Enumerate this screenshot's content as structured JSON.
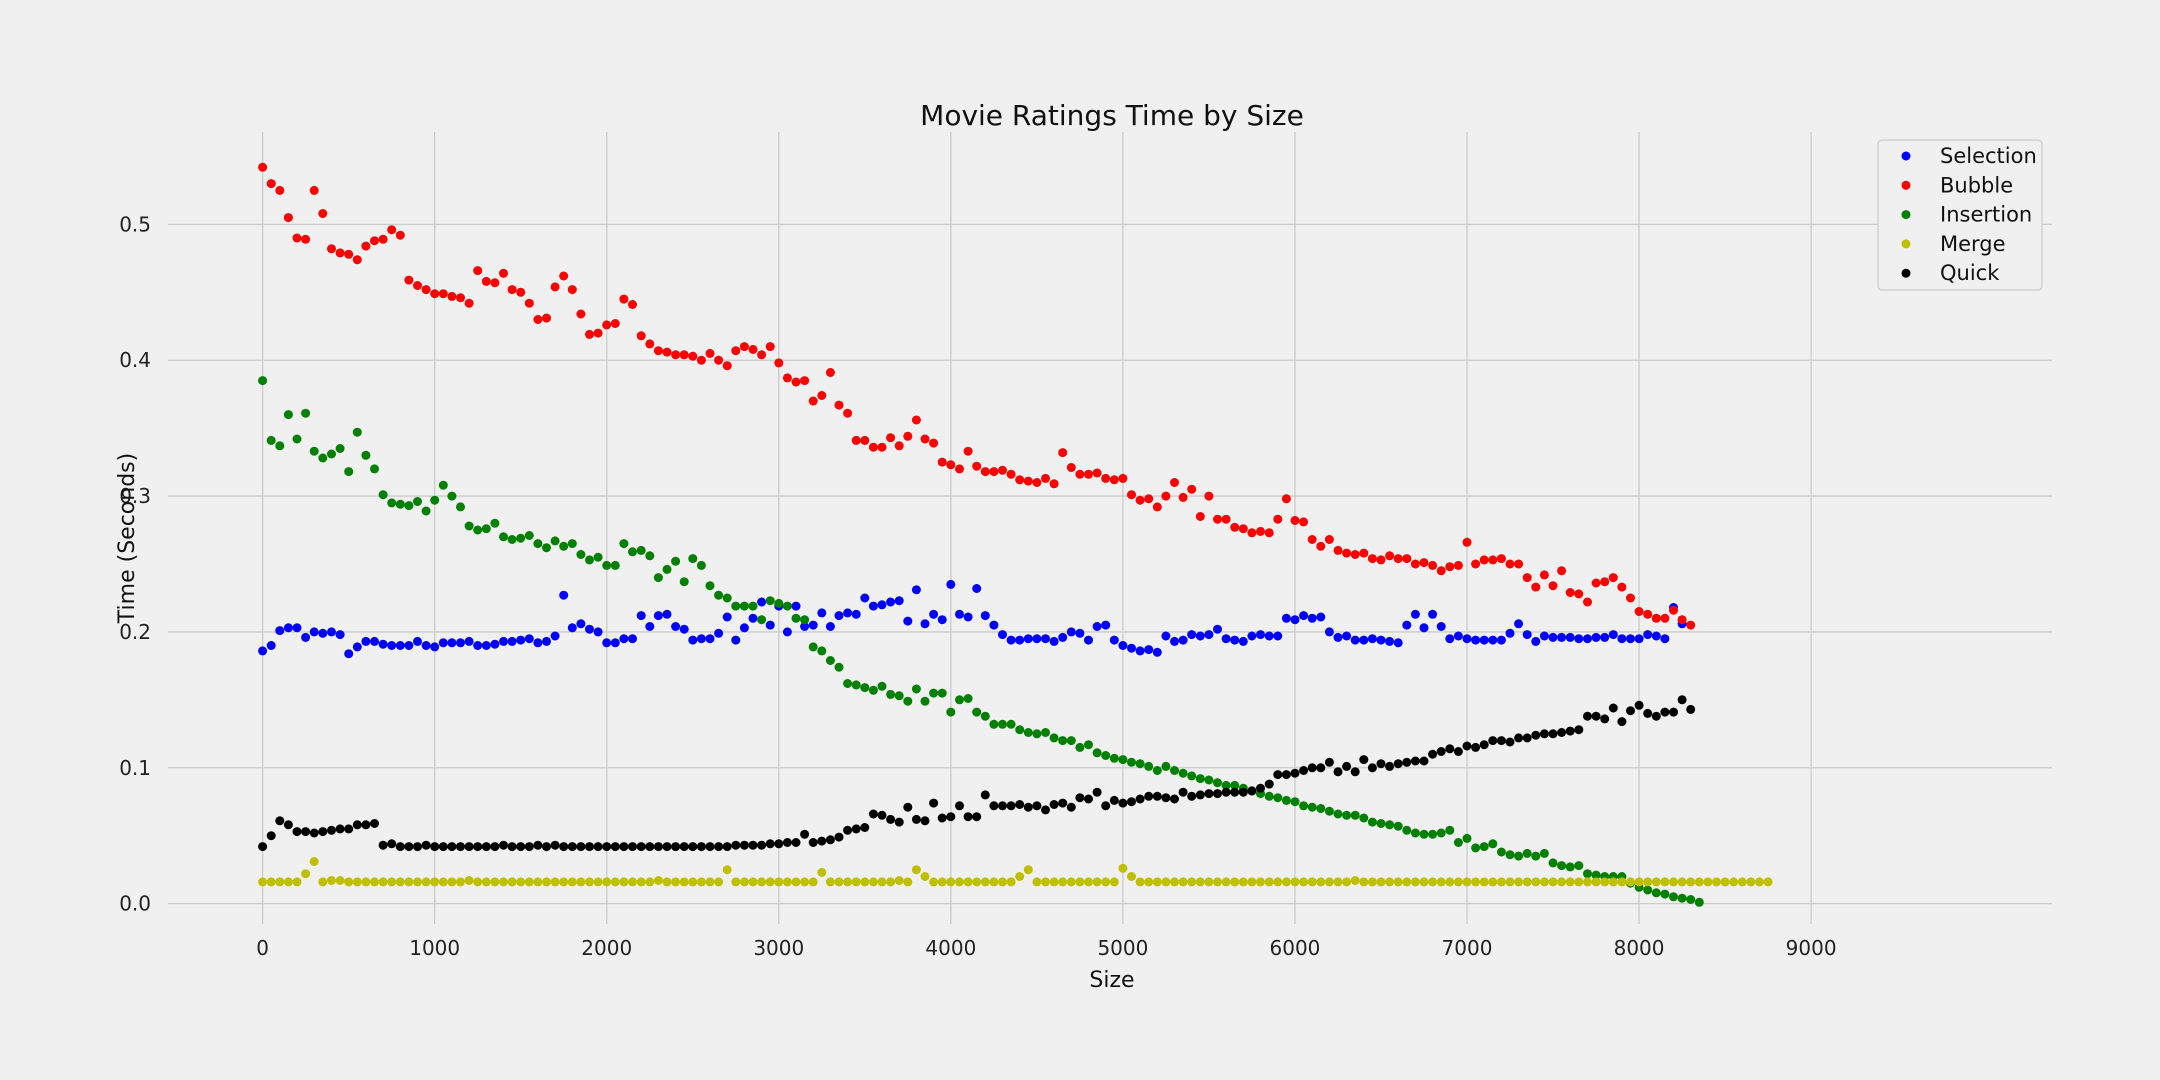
{
  "chart_data": {
    "type": "scatter",
    "title": "Movie Ratings Time by Size",
    "xlabel": "Size",
    "ylabel": "Time (Seconds)",
    "xlim": [
      -550,
      10400
    ],
    "ylim": [
      -0.015,
      0.568
    ],
    "xticks": [
      0,
      1000,
      2000,
      3000,
      4000,
      5000,
      6000,
      7000,
      8000,
      9000
    ],
    "xtick_labels": [
      "0",
      "1000",
      "2000",
      "3000",
      "4000",
      "5000",
      "6000",
      "7000",
      "8000",
      "9000"
    ],
    "yticks": [
      0.0,
      0.1,
      0.2,
      0.3,
      0.4,
      0.5
    ],
    "ytick_labels": [
      "0.0",
      "0.1",
      "0.2",
      "0.3",
      "0.4",
      "0.5"
    ],
    "grid": true,
    "legend": "top-right",
    "x_start": 0,
    "x_step": 50,
    "series": [
      {
        "name": "Selection",
        "color": "#0000ff",
        "values": [
          0.186,
          0.19,
          0.201,
          0.203,
          0.203,
          0.196,
          0.2,
          0.199,
          0.2,
          0.198,
          0.184,
          0.189,
          0.193,
          0.193,
          0.191,
          0.19,
          0.19,
          0.19,
          0.193,
          0.19,
          0.189,
          0.192,
          0.192,
          0.192,
          0.193,
          0.19,
          0.19,
          0.191,
          0.193,
          0.193,
          0.194,
          0.195,
          0.192,
          0.193,
          0.197,
          0.227,
          0.203,
          0.206,
          0.202,
          0.2,
          0.192,
          0.192,
          0.195,
          0.195,
          0.212,
          0.204,
          0.212,
          0.213,
          0.204,
          0.202,
          0.194,
          0.195,
          0.195,
          0.199,
          0.211,
          0.194,
          0.203,
          0.21,
          0.222,
          0.205,
          0.219,
          0.2,
          0.219,
          0.204,
          0.205,
          0.214,
          0.204,
          0.212,
          0.214,
          0.213,
          0.225,
          0.219,
          0.22,
          0.222,
          0.223,
          0.208,
          0.231,
          0.206,
          0.213,
          0.209,
          0.235,
          0.213,
          0.211,
          0.232,
          0.212,
          0.205,
          0.198,
          0.194,
          0.194,
          0.195,
          0.195,
          0.195,
          0.193,
          0.196,
          0.2,
          0.199,
          0.194,
          0.204,
          0.205,
          0.194,
          0.19,
          0.188,
          0.186,
          0.187,
          0.185,
          0.197,
          0.193,
          0.194,
          0.198,
          0.197,
          0.198,
          0.202,
          0.195,
          0.194,
          0.193,
          0.197,
          0.198,
          0.197,
          0.197,
          0.21,
          0.209,
          0.212,
          0.21,
          0.211,
          0.2,
          0.196,
          0.197,
          0.194,
          0.194,
          0.195,
          0.194,
          0.193,
          0.192,
          0.205,
          0.213,
          0.203,
          0.213,
          0.204,
          0.195,
          0.197,
          0.195,
          0.194,
          0.194,
          0.194,
          0.194,
          0.199,
          0.206,
          0.198,
          0.193,
          0.197,
          0.196,
          0.196,
          0.196,
          0.195,
          0.195,
          0.196,
          0.196,
          0.198,
          0.195,
          0.195,
          0.195,
          0.198,
          0.197,
          0.195,
          0.218,
          0.206
        ]
      },
      {
        "name": "Bubble",
        "color": "#ff0000",
        "values": [
          0.542,
          0.53,
          0.525,
          0.505,
          0.49,
          0.489,
          0.525,
          0.508,
          0.482,
          0.479,
          0.478,
          0.474,
          0.484,
          0.488,
          0.489,
          0.496,
          0.492,
          0.459,
          0.455,
          0.452,
          0.449,
          0.449,
          0.447,
          0.446,
          0.442,
          0.466,
          0.458,
          0.457,
          0.464,
          0.452,
          0.45,
          0.442,
          0.43,
          0.431,
          0.454,
          0.462,
          0.452,
          0.434,
          0.419,
          0.42,
          0.426,
          0.427,
          0.445,
          0.441,
          0.418,
          0.412,
          0.407,
          0.406,
          0.404,
          0.404,
          0.403,
          0.4,
          0.405,
          0.4,
          0.396,
          0.407,
          0.41,
          0.408,
          0.404,
          0.41,
          0.398,
          0.387,
          0.384,
          0.385,
          0.37,
          0.374,
          0.391,
          0.367,
          0.361,
          0.341,
          0.341,
          0.336,
          0.336,
          0.343,
          0.337,
          0.344,
          0.356,
          0.342,
          0.339,
          0.325,
          0.323,
          0.32,
          0.333,
          0.322,
          0.318,
          0.318,
          0.319,
          0.316,
          0.312,
          0.311,
          0.31,
          0.313,
          0.309,
          0.332,
          0.321,
          0.316,
          0.316,
          0.317,
          0.313,
          0.312,
          0.313,
          0.301,
          0.297,
          0.298,
          0.292,
          0.3,
          0.31,
          0.299,
          0.305,
          0.285,
          0.3,
          0.283,
          0.283,
          0.277,
          0.276,
          0.273,
          0.274,
          0.273,
          0.283,
          0.298,
          0.282,
          0.281,
          0.268,
          0.263,
          0.268,
          0.26,
          0.258,
          0.257,
          0.258,
          0.254,
          0.253,
          0.256,
          0.254,
          0.254,
          0.25,
          0.251,
          0.249,
          0.245,
          0.248,
          0.249,
          0.266,
          0.25,
          0.253,
          0.253,
          0.254,
          0.25,
          0.25,
          0.24,
          0.233,
          0.242,
          0.234,
          0.245,
          0.229,
          0.228,
          0.222,
          0.236,
          0.237,
          0.24,
          0.233,
          0.225,
          0.215,
          0.213,
          0.21,
          0.21,
          0.216,
          0.209,
          0.205
        ]
      },
      {
        "name": "Insertion",
        "color": "#008000",
        "values": [
          0.385,
          0.341,
          0.337,
          0.36,
          0.342,
          0.361,
          0.333,
          0.328,
          0.331,
          0.335,
          0.318,
          0.347,
          0.33,
          0.32,
          0.301,
          0.295,
          0.294,
          0.293,
          0.296,
          0.289,
          0.297,
          0.308,
          0.3,
          0.292,
          0.278,
          0.275,
          0.276,
          0.28,
          0.27,
          0.268,
          0.269,
          0.271,
          0.265,
          0.262,
          0.267,
          0.263,
          0.265,
          0.257,
          0.253,
          0.255,
          0.249,
          0.249,
          0.265,
          0.259,
          0.26,
          0.256,
          0.24,
          0.246,
          0.252,
          0.237,
          0.254,
          0.249,
          0.234,
          0.227,
          0.225,
          0.219,
          0.219,
          0.219,
          0.209,
          0.223,
          0.221,
          0.219,
          0.21,
          0.209,
          0.189,
          0.186,
          0.179,
          0.174,
          0.162,
          0.161,
          0.159,
          0.157,
          0.16,
          0.154,
          0.153,
          0.149,
          0.158,
          0.149,
          0.155,
          0.155,
          0.141,
          0.15,
          0.151,
          0.141,
          0.138,
          0.132,
          0.132,
          0.132,
          0.128,
          0.126,
          0.125,
          0.126,
          0.122,
          0.12,
          0.12,
          0.115,
          0.117,
          0.111,
          0.109,
          0.107,
          0.106,
          0.104,
          0.103,
          0.101,
          0.098,
          0.101,
          0.098,
          0.096,
          0.094,
          0.092,
          0.091,
          0.089,
          0.087,
          0.087,
          0.085,
          0.083,
          0.081,
          0.079,
          0.078,
          0.076,
          0.075,
          0.072,
          0.071,
          0.07,
          0.068,
          0.066,
          0.065,
          0.065,
          0.063,
          0.06,
          0.059,
          0.058,
          0.057,
          0.054,
          0.052,
          0.051,
          0.051,
          0.052,
          0.054,
          0.045,
          0.048,
          0.041,
          0.042,
          0.044,
          0.038,
          0.036,
          0.035,
          0.037,
          0.035,
          0.037,
          0.03,
          0.028,
          0.027,
          0.028,
          0.022,
          0.021,
          0.02,
          0.02,
          0.02,
          0.015,
          0.012,
          0.01,
          0.008,
          0.007,
          0.005,
          0.004,
          0.003,
          0.001
        ]
      },
      {
        "name": "Merge",
        "color": "#bfbf00",
        "values": [
          0.016,
          0.016,
          0.016,
          0.016,
          0.016,
          0.022,
          0.031,
          0.016,
          0.017,
          0.017,
          0.016,
          0.016,
          0.016,
          0.016,
          0.016,
          0.016,
          0.016,
          0.016,
          0.016,
          0.016,
          0.016,
          0.016,
          0.016,
          0.016,
          0.017,
          0.016,
          0.016,
          0.016,
          0.016,
          0.016,
          0.016,
          0.016,
          0.016,
          0.016,
          0.016,
          0.016,
          0.016,
          0.016,
          0.016,
          0.016,
          0.016,
          0.016,
          0.016,
          0.016,
          0.016,
          0.016,
          0.017,
          0.016,
          0.016,
          0.016,
          0.016,
          0.016,
          0.016,
          0.016,
          0.025,
          0.016,
          0.016,
          0.016,
          0.016,
          0.016,
          0.016,
          0.016,
          0.016,
          0.016,
          0.016,
          0.023,
          0.016,
          0.016,
          0.016,
          0.016,
          0.016,
          0.016,
          0.016,
          0.016,
          0.017,
          0.016,
          0.025,
          0.02,
          0.016,
          0.016,
          0.016,
          0.016,
          0.016,
          0.016,
          0.016,
          0.016,
          0.016,
          0.016,
          0.02,
          0.025,
          0.016,
          0.016,
          0.016,
          0.016,
          0.016,
          0.016,
          0.016,
          0.016,
          0.016,
          0.016,
          0.026,
          0.02,
          0.016,
          0.016,
          0.016,
          0.016,
          0.016,
          0.016,
          0.016,
          0.016,
          0.016,
          0.016,
          0.016,
          0.016,
          0.016,
          0.016,
          0.016,
          0.016,
          0.016,
          0.016,
          0.016,
          0.016,
          0.016,
          0.016,
          0.016,
          0.016,
          0.016,
          0.017,
          0.016,
          0.016,
          0.016,
          0.016,
          0.016,
          0.016,
          0.016,
          0.016,
          0.016,
          0.016,
          0.016,
          0.016,
          0.016,
          0.016,
          0.016,
          0.016,
          0.016,
          0.016,
          0.016,
          0.016,
          0.016,
          0.016,
          0.016,
          0.016,
          0.016,
          0.016,
          0.016,
          0.016,
          0.016,
          0.016,
          0.016,
          0.016,
          0.016,
          0.016,
          0.016,
          0.016,
          0.016,
          0.016,
          0.016,
          0.016,
          0.016,
          0.016,
          0.016,
          0.016,
          0.016,
          0.016,
          0.016,
          0.016
        ]
      },
      {
        "name": "Quick",
        "color": "#000000",
        "values": [
          0.042,
          0.05,
          0.061,
          0.058,
          0.053,
          0.053,
          0.052,
          0.053,
          0.054,
          0.055,
          0.055,
          0.058,
          0.058,
          0.059,
          0.043,
          0.044,
          0.042,
          0.042,
          0.042,
          0.043,
          0.042,
          0.042,
          0.042,
          0.042,
          0.042,
          0.042,
          0.042,
          0.042,
          0.043,
          0.042,
          0.042,
          0.042,
          0.043,
          0.042,
          0.043,
          0.042,
          0.042,
          0.042,
          0.042,
          0.042,
          0.042,
          0.042,
          0.042,
          0.042,
          0.042,
          0.042,
          0.042,
          0.042,
          0.042,
          0.042,
          0.042,
          0.042,
          0.042,
          0.042,
          0.042,
          0.043,
          0.043,
          0.043,
          0.043,
          0.044,
          0.044,
          0.045,
          0.045,
          0.051,
          0.045,
          0.046,
          0.047,
          0.049,
          0.054,
          0.055,
          0.056,
          0.066,
          0.065,
          0.062,
          0.06,
          0.071,
          0.062,
          0.061,
          0.074,
          0.063,
          0.064,
          0.072,
          0.064,
          0.064,
          0.08,
          0.072,
          0.072,
          0.072,
          0.073,
          0.071,
          0.072,
          0.069,
          0.073,
          0.074,
          0.071,
          0.078,
          0.077,
          0.082,
          0.072,
          0.076,
          0.074,
          0.075,
          0.077,
          0.079,
          0.079,
          0.078,
          0.077,
          0.082,
          0.079,
          0.08,
          0.081,
          0.081,
          0.082,
          0.082,
          0.082,
          0.083,
          0.085,
          0.088,
          0.095,
          0.095,
          0.096,
          0.098,
          0.1,
          0.1,
          0.104,
          0.097,
          0.101,
          0.097,
          0.106,
          0.1,
          0.103,
          0.101,
          0.103,
          0.104,
          0.105,
          0.105,
          0.11,
          0.112,
          0.114,
          0.112,
          0.116,
          0.115,
          0.117,
          0.12,
          0.12,
          0.119,
          0.122,
          0.122,
          0.124,
          0.125,
          0.125,
          0.126,
          0.127,
          0.128,
          0.138,
          0.138,
          0.136,
          0.144,
          0.134,
          0.142,
          0.146,
          0.14,
          0.138,
          0.141,
          0.141,
          0.15,
          0.143
        ]
      }
    ]
  }
}
